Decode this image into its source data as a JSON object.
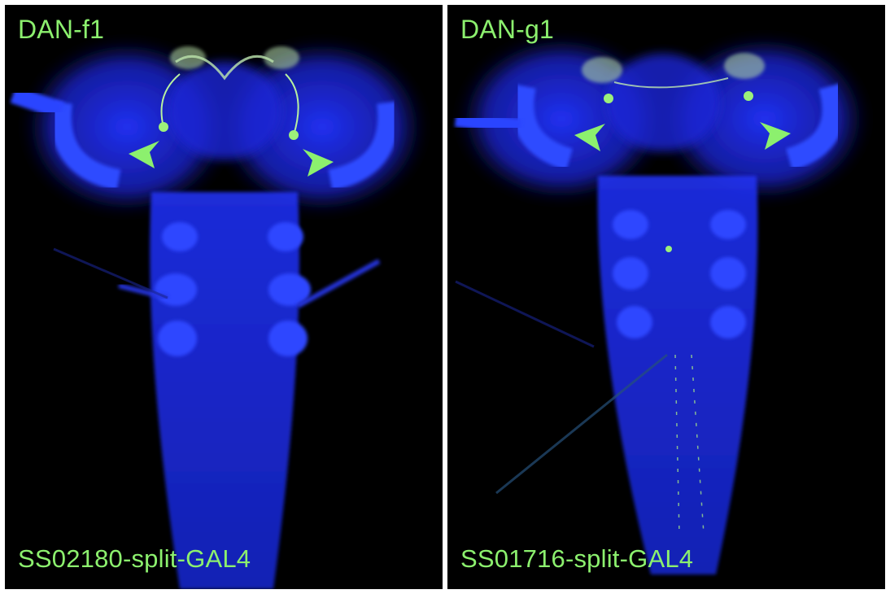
{
  "panels": [
    {
      "title": "DAN-f1",
      "line": "SS02180-split-GAL4",
      "arrowheads": 2
    },
    {
      "title": "DAN-g1",
      "line": "SS01716-split-GAL4",
      "arrowheads": 2
    }
  ],
  "colors": {
    "background": "#000000",
    "tissue_stain": "#2a3cff",
    "neuron_label": "#8cf06e"
  }
}
